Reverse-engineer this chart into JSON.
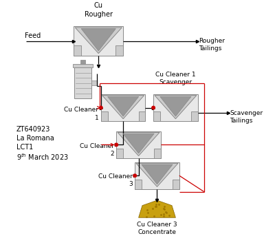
{
  "background_color": "#ffffff",
  "text_color": "#000000",
  "arrow_color": "#000000",
  "recycle_line_color": "#cc0000",
  "cell_light": "#e8e8e8",
  "cell_mid": "#cccccc",
  "cell_dark": "#999999",
  "cell_edge": "#888888",
  "cond_body": "#d8d8d8",
  "cond_lines": "#999999",
  "concentrate_color": "#c8a010",
  "concentrate_edge": "#806000",
  "labels": {
    "feed": "Feed",
    "rougher": "Cu\nRougher",
    "rougher_tailings": "Rougher\nTailings",
    "cleaner1": "Cu Cleaner\n1",
    "cleaner1_scav": "Cu Cleaner 1\nScavenger",
    "scav_tailings": "Scavenger\nTailings",
    "cleaner2": "Cu Cleaner\n2",
    "cleaner3": "Cu Cleaner\n3",
    "concentrate": "Cu Cleaner 3\nConcentrate",
    "annotation_line1": "ZT640923",
    "annotation_line2": "La Romana",
    "annotation_line3": "LCT1",
    "annotation_line4": "9$^{th}$ March 2023"
  },
  "figsize": [
    4.0,
    3.43
  ],
  "dpi": 100
}
